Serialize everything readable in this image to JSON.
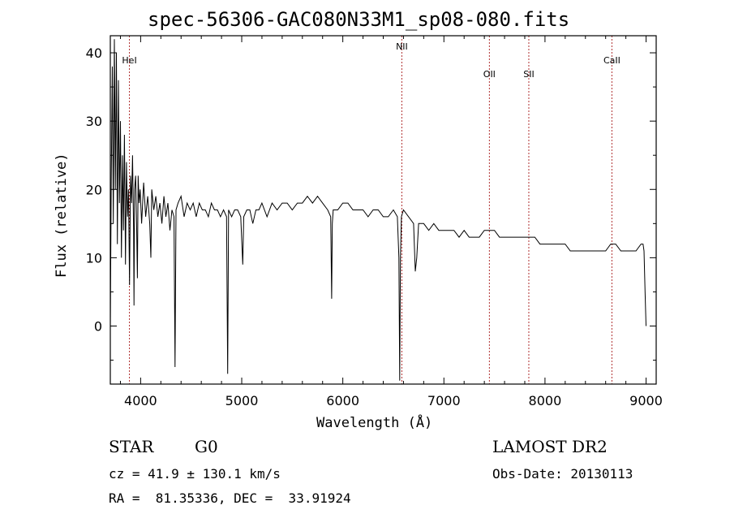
{
  "chart_data": {
    "type": "line",
    "title": "spec-56306-GAC080N33M1_sp08-080.fits",
    "xlabel": "Wavelength (Å)",
    "ylabel": "Flux (relative)",
    "xlim": [
      3700,
      9100
    ],
    "ylim": [
      -8.5,
      42.5
    ],
    "xticks": [
      4000,
      5000,
      6000,
      7000,
      8000,
      9000
    ],
    "yticks": [
      0,
      10,
      20,
      30,
      40
    ],
    "grid": false,
    "line_color": "#000000",
    "marker_color": "#b03030",
    "line_markers": [
      {
        "name": "HeI",
        "x": 3889
      },
      {
        "name": "NII",
        "x": 6584
      },
      {
        "name": "OII",
        "x": 7450
      },
      {
        "name": "SII",
        "x": 7840
      },
      {
        "name": "CaII",
        "x": 8662
      }
    ],
    "series": [
      {
        "x": [
          3700,
          3710,
          3720,
          3730,
          3740,
          3750,
          3760,
          3770,
          3780,
          3790,
          3800,
          3810,
          3820,
          3830,
          3840,
          3850,
          3860,
          3870,
          3880,
          3890,
          3900,
          3910,
          3920,
          3930,
          3934,
          3940,
          3950,
          3960,
          3968,
          3975,
          3985,
          3995,
          4010,
          4030,
          4050,
          4070,
          4090,
          4101,
          4110,
          4130,
          4150,
          4170,
          4190,
          4210,
          4230,
          4250,
          4270,
          4290,
          4310,
          4330,
          4340,
          4350,
          4370,
          4400,
          4430,
          4460,
          4490,
          4520,
          4550,
          4580,
          4610,
          4640,
          4670,
          4700,
          4730,
          4760,
          4790,
          4820,
          4850,
          4861,
          4870,
          4900,
          4930,
          4960,
          4990,
          5010,
          5020,
          5050,
          5080,
          5110,
          5140,
          5170,
          5200,
          5250,
          5300,
          5350,
          5400,
          5450,
          5500,
          5550,
          5600,
          5650,
          5700,
          5750,
          5800,
          5850,
          5880,
          5890,
          5896,
          5905,
          5950,
          6000,
          6050,
          6100,
          6150,
          6200,
          6250,
          6300,
          6350,
          6400,
          6450,
          6500,
          6540,
          6555,
          6563,
          6570,
          6580,
          6600,
          6650,
          6700,
          6717,
          6731,
          6750,
          6800,
          6850,
          6900,
          6950,
          7000,
          7050,
          7100,
          7150,
          7200,
          7250,
          7300,
          7350,
          7400,
          7450,
          7500,
          7550,
          7600,
          7650,
          7700,
          7750,
          7800,
          7850,
          7900,
          7950,
          8000,
          8050,
          8100,
          8150,
          8200,
          8250,
          8300,
          8350,
          8400,
          8450,
          8500,
          8550,
          8600,
          8650,
          8700,
          8750,
          8800,
          8850,
          8900,
          8950,
          8970,
          8980,
          8990,
          9000
        ],
        "values": [
          0,
          22,
          38,
          15,
          42,
          20,
          40,
          12,
          36,
          18,
          30,
          10,
          25,
          14,
          28,
          9,
          24,
          16,
          20,
          6,
          22,
          18,
          25,
          14,
          3,
          20,
          22,
          15,
          7,
          22,
          18,
          20,
          15,
          21,
          16,
          19,
          15,
          10,
          20,
          17,
          19,
          16,
          18,
          15,
          19,
          16,
          18,
          14,
          17,
          16,
          -6,
          17,
          18,
          19,
          16,
          18,
          17,
          18,
          16,
          18,
          17,
          17,
          16,
          18,
          17,
          17,
          16,
          17,
          16,
          -7,
          17,
          16,
          17,
          17,
          16,
          9,
          16,
          17,
          17,
          15,
          17,
          17,
          18,
          16,
          18,
          17,
          18,
          18,
          17,
          18,
          18,
          19,
          18,
          19,
          18,
          17,
          16,
          4,
          15,
          17,
          17,
          18,
          18,
          17,
          17,
          17,
          16,
          17,
          17,
          16,
          16,
          17,
          16,
          10,
          -8,
          10,
          16,
          17,
          16,
          15,
          8,
          10,
          15,
          15,
          14,
          15,
          14,
          14,
          14,
          14,
          13,
          14,
          13,
          13,
          13,
          14,
          14,
          14,
          13,
          13,
          13,
          13,
          13,
          13,
          13,
          13,
          12,
          12,
          12,
          12,
          12,
          12,
          11,
          11,
          11,
          11,
          11,
          11,
          11,
          11,
          12,
          12,
          11,
          11,
          11,
          11,
          12,
          12,
          11,
          5,
          0
        ]
      }
    ]
  },
  "footer": {
    "object_type": "STAR",
    "spectral_class": "G0",
    "survey": "LAMOST DR2",
    "cz": "cz = 41.9 ± 130.1 km/s",
    "obs_date": "Obs-Date: 20130113",
    "coords": "RA =  81.35336, DEC =  33.91924"
  }
}
